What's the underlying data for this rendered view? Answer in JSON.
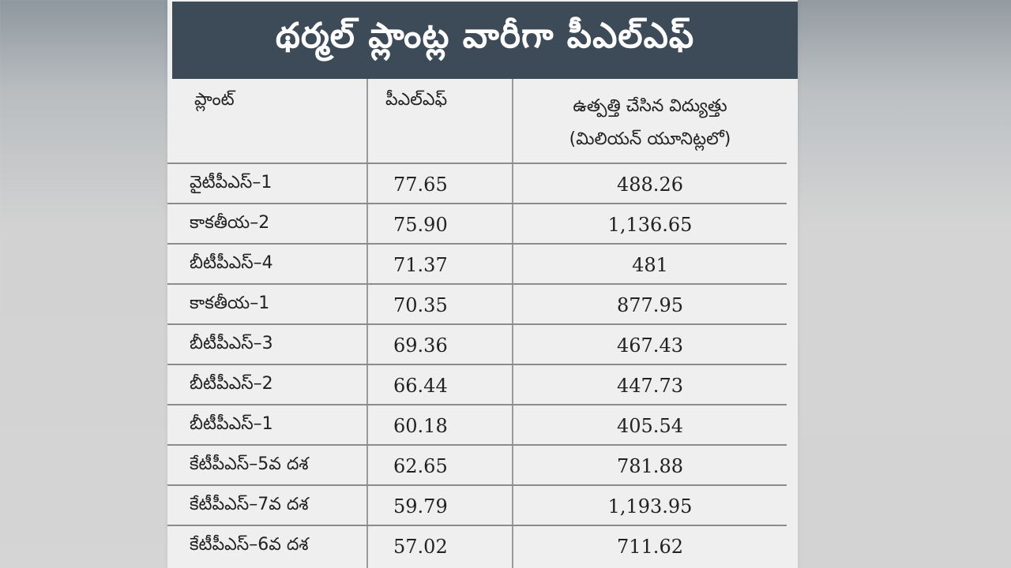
{
  "title": "థర్మల్ ప్లాంట్ల వారీగా పీఎల్ఎఫ్",
  "table": {
    "headers": {
      "plant": "ప్లాంట్",
      "plf": "పీఎల్ఎఫ్",
      "generation_line1": "ఉత్పత్తి చేసిన విద్యుత్తు",
      "generation_line2": "(మిలియన్ యూనిట్లలో)"
    },
    "rows": [
      {
        "plant": "వైటీపీఎస్–1",
        "plf": "77.65",
        "generation": "488.26"
      },
      {
        "plant": "కాకతీయ–2",
        "plf": "75.90",
        "generation": "1,136.65"
      },
      {
        "plant": "బీటీపీఎస్–4",
        "plf": "71.37",
        "generation": "481"
      },
      {
        "plant": "కాకతీయ–1",
        "plf": "70.35",
        "generation": "877.95"
      },
      {
        "plant": "బీటీపీఎస్–3",
        "plf": "69.36",
        "generation": "467.43"
      },
      {
        "plant": "బీటీపీఎస్–2",
        "plf": "66.44",
        "generation": "447.73"
      },
      {
        "plant": "బీటీపీఎస్–1",
        "plf": "60.18",
        "generation": "405.54"
      },
      {
        "plant": "కేటీపీఎస్–5వ దశ",
        "plf": "62.65",
        "generation": "781.88"
      },
      {
        "plant": "కేటీపీఎస్–7వ దశ",
        "plf": "59.79",
        "generation": "1,193.95"
      },
      {
        "plant": "కేటీపీఎస్–6వ దశ",
        "plf": "57.02",
        "generation": "711.62"
      }
    ]
  }
}
